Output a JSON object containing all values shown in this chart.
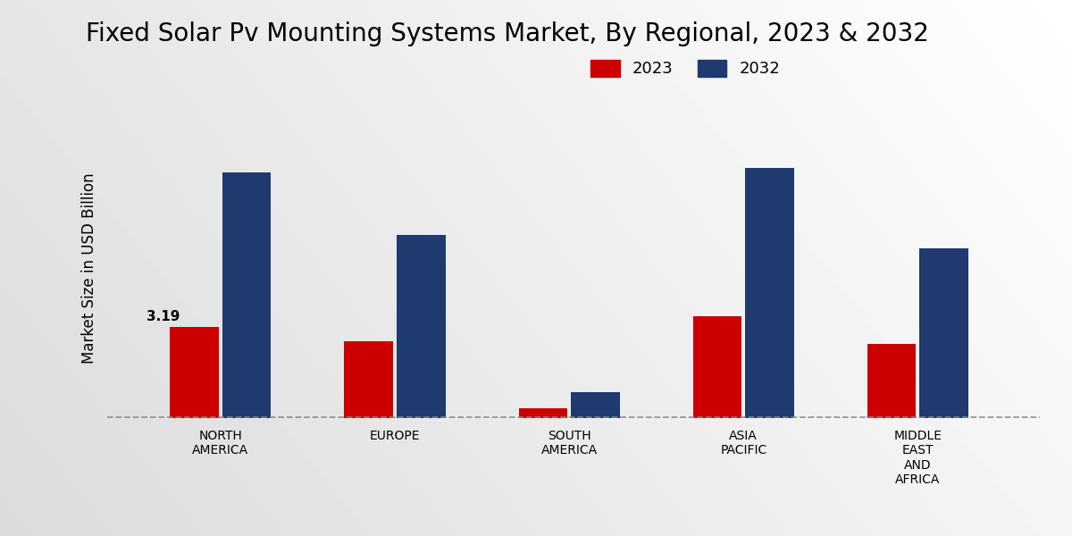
{
  "title": "Fixed Solar Pv Mounting Systems Market, By Regional, 2023 & 2032",
  "ylabel": "Market Size in USD Billion",
  "categories": [
    "NORTH\nAMERICA",
    "EUROPE",
    "SOUTH\nAMERICA",
    "ASIA\nPACIFIC",
    "MIDDLE\nEAST\nAND\nAFRICA"
  ],
  "values_2023": [
    3.19,
    2.7,
    0.35,
    3.55,
    2.58
  ],
  "values_2032": [
    8.6,
    6.4,
    0.92,
    8.75,
    5.95
  ],
  "color_2023": "#cc0000",
  "color_2032": "#1e3a6e",
  "label_2023": "2023",
  "label_2032": "2032",
  "annotation_value": "3.19",
  "annotation_idx": 0,
  "bar_width": 0.28,
  "title_fontsize": 20,
  "axis_label_fontsize": 12,
  "tick_fontsize": 10,
  "legend_fontsize": 13,
  "annotation_fontsize": 11,
  "ylim_max": 10.5,
  "bg_color": "#e8e8e8",
  "dashed_line_y": 0.02
}
